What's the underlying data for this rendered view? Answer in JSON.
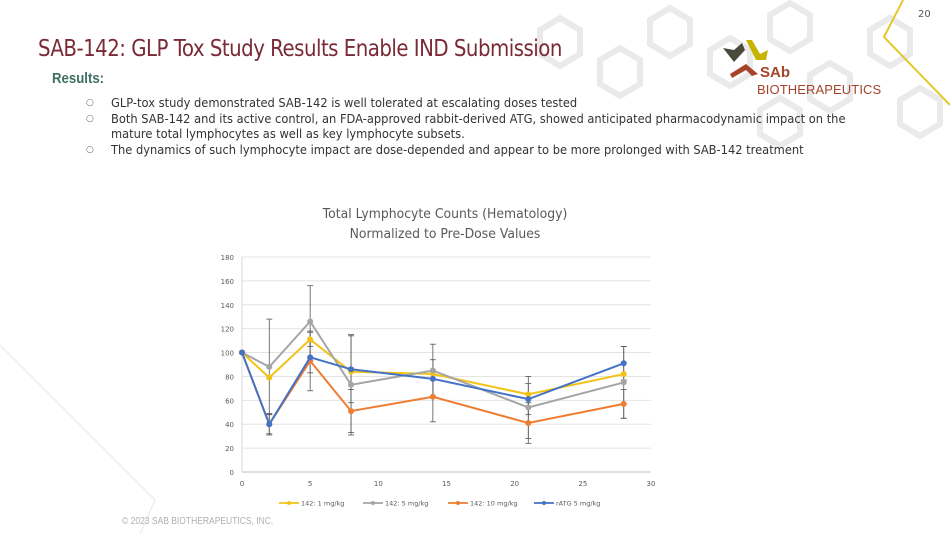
{
  "slide": {
    "page_number": "20",
    "title": "SAB-142: GLP Tox Study Results Enable IND Submission",
    "section_label": "Results:",
    "bullets": [
      {
        "text": "GLP-tox study demonstrated  SAB-142  is well tolerated at escalating doses tested"
      },
      {
        "text": "Both SAB-142  and its active control, an FDA-approved rabbit-derived ATG, showed anticipated pharmacodynamic impact on the mature total lymphocytes as well as key lymphocyte subsets."
      },
      {
        "text": "The dynamics of such lymphocyte impact are dose-depended  and appear to be more prolonged  with SAB-142 treatment"
      }
    ],
    "bullet_marker": "○",
    "logo": {
      "line1": "SAb",
      "line2": "BIOTHERAPEUTICS",
      "colors": {
        "dark": "#4a4a3c",
        "yellow": "#c8b400",
        "rust": "#a6432a"
      }
    },
    "footer": "© 2023 SAB BIOTHERAPEUTICS, INC.",
    "accent_colors": {
      "title": "#7a2a35",
      "results": "#3f6e63",
      "deco_line": "#e3c829"
    }
  },
  "chart_data": {
    "type": "line",
    "title": "Total Lymphocyte Counts (Hematology)",
    "subtitle": "Normalized to Pre-Dose Values",
    "xlabel": "",
    "ylabel": "",
    "xlim": [
      0,
      30
    ],
    "ylim": [
      0,
      180
    ],
    "x_ticks": [
      0,
      5,
      10,
      15,
      20,
      25,
      30
    ],
    "y_ticks": [
      0,
      20,
      40,
      60,
      80,
      100,
      120,
      140,
      160,
      180
    ],
    "grid": "horizontal",
    "legend_position": "bottom",
    "x": [
      0,
      2,
      5,
      8,
      14,
      21,
      28
    ],
    "series": [
      {
        "name": "142: 1 mg/kg",
        "color": "#f2c314",
        "values": [
          100,
          79,
          111,
          84,
          82,
          65,
          82
        ],
        "err": [
          0,
          0,
          6,
          0,
          0,
          0,
          0
        ]
      },
      {
        "name": "142: 5 mg/kg",
        "color": "#a5a5a5",
        "values": [
          100,
          88,
          126,
          73,
          85,
          54,
          75
        ],
        "err": [
          0,
          40,
          30,
          42,
          22,
          26,
          30
        ]
      },
      {
        "name": "142: 10 mg/kg",
        "color": "#ed7d31",
        "values": [
          100,
          40,
          93,
          51,
          63,
          41,
          57
        ],
        "err": [
          0,
          8,
          25,
          18,
          21,
          17,
          12
        ]
      },
      {
        "name": "rATG 5 mg/kg",
        "color": "#4472c4",
        "values": [
          100,
          40,
          96,
          86,
          78,
          61,
          91
        ],
        "err": [
          0,
          9,
          13,
          28,
          16,
          13,
          14
        ]
      }
    ]
  }
}
